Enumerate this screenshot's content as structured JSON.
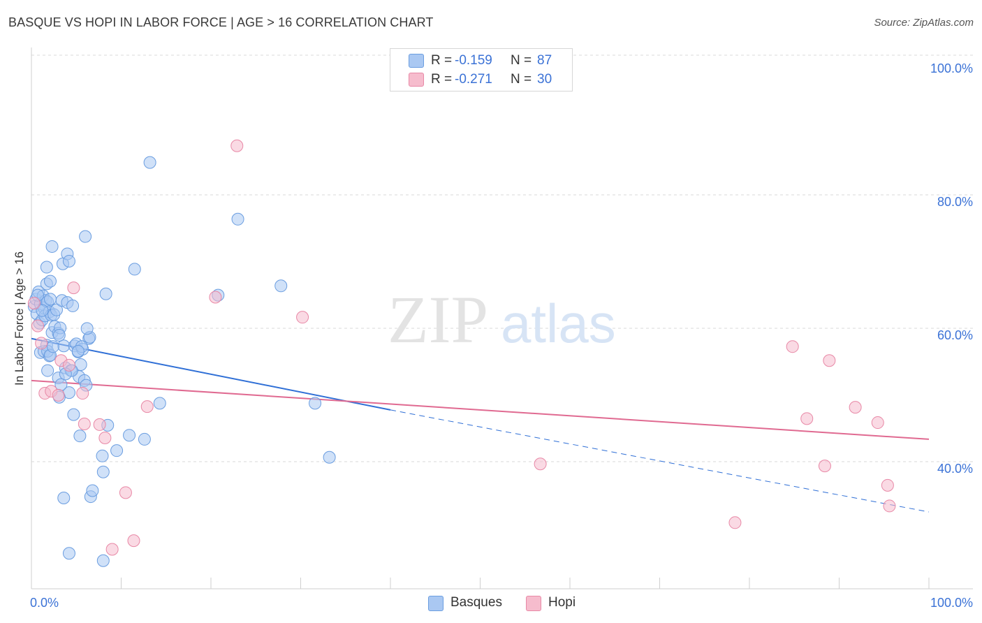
{
  "header": {
    "title": "BASQUE VS HOPI IN LABOR FORCE | AGE > 16 CORRELATION CHART",
    "source": "Source: ZipAtlas.com"
  },
  "legend": {
    "rows": [
      {
        "r_label": "R =",
        "r_value": "-0.159",
        "n_label": "N =",
        "n_value": "87"
      },
      {
        "r_label": "R =",
        "r_value": "-0.271",
        "n_label": "N =",
        "n_value": "30"
      }
    ],
    "bottom": [
      "Basques",
      "Hopi"
    ]
  },
  "watermark": {
    "zip": "ZIP",
    "atlas": "atlas"
  },
  "colors": {
    "basques_fill": "#aac8f2",
    "basques_stroke": "#6a9de0",
    "basques_line": "#2f6fd6",
    "hopi_fill": "#f6bccd",
    "hopi_stroke": "#e888a6",
    "hopi_line": "#e06a91",
    "tick_label": "#3b72d6",
    "grid": "#d9d9d9"
  },
  "chart_data": {
    "type": "scatter",
    "title": "BASQUE VS HOPI IN LABOR FORCE | AGE > 16 CORRELATION CHART",
    "xlabel": "",
    "ylabel": "In Labor Force | Age > 16",
    "xlim": [
      0,
      100
    ],
    "ylim": [
      20,
      100
    ],
    "x_tick_labels": [
      "0.0%",
      "100.0%"
    ],
    "y_ticks": [
      40,
      60,
      80,
      100
    ],
    "y_tick_labels": [
      "40.0%",
      "60.0%",
      "80.0%",
      "100.0%"
    ],
    "grid": true,
    "legend_position": "top-center",
    "series": [
      {
        "name": "Basques",
        "R": -0.159,
        "N": 87,
        "trend": {
          "x": [
            0,
            40
          ],
          "y": [
            59.4,
            48.7
          ],
          "dashed_extension": {
            "x": [
              40,
              100
            ],
            "y": [
              48.7,
              33.4
            ]
          }
        },
        "points": [
          [
            0.3,
            64.2
          ],
          [
            0.5,
            65.3
          ],
          [
            0.6,
            63.1
          ],
          [
            0.8,
            66.4
          ],
          [
            0.9,
            61.7
          ],
          [
            1.0,
            64.6
          ],
          [
            1.2,
            62.2
          ],
          [
            1.3,
            65.8
          ],
          [
            1.4,
            64.0
          ],
          [
            1.5,
            62.8
          ],
          [
            1.6,
            65.1
          ],
          [
            1.7,
            67.6
          ],
          [
            1.8,
            64.9
          ],
          [
            2.0,
            63.4
          ],
          [
            2.1,
            65.3
          ],
          [
            2.2,
            62.9
          ],
          [
            1.0,
            57.3
          ],
          [
            1.4,
            57.5
          ],
          [
            1.7,
            58.4
          ],
          [
            2.0,
            56.8
          ],
          [
            1.8,
            54.6
          ],
          [
            2.3,
            60.3
          ],
          [
            2.5,
            63.0
          ],
          [
            2.6,
            61.2
          ],
          [
            2.8,
            63.7
          ],
          [
            3.0,
            60.2
          ],
          [
            3.2,
            61.0
          ],
          [
            3.4,
            65.1
          ],
          [
            3.6,
            58.3
          ],
          [
            3.8,
            55.0
          ],
          [
            4.0,
            64.8
          ],
          [
            4.2,
            51.3
          ],
          [
            4.4,
            54.6
          ],
          [
            4.6,
            64.3
          ],
          [
            4.8,
            58.3
          ],
          [
            5.0,
            58.6
          ],
          [
            5.2,
            57.4
          ],
          [
            5.3,
            53.7
          ],
          [
            5.5,
            55.5
          ],
          [
            5.7,
            57.8
          ],
          [
            5.9,
            53.1
          ],
          [
            6.1,
            52.4
          ],
          [
            6.4,
            59.4
          ],
          [
            3.0,
            53.5
          ],
          [
            3.3,
            52.5
          ],
          [
            3.1,
            50.6
          ],
          [
            4.7,
            48.0
          ],
          [
            5.4,
            44.8
          ],
          [
            1.7,
            70.1
          ],
          [
            2.1,
            68.0
          ],
          [
            2.3,
            73.2
          ],
          [
            3.5,
            70.6
          ],
          [
            4.0,
            72.1
          ],
          [
            4.2,
            71.0
          ],
          [
            6.0,
            74.7
          ],
          [
            6.5,
            59.6
          ],
          [
            6.2,
            60.9
          ],
          [
            1.8,
            57.5
          ],
          [
            2.1,
            56.9
          ],
          [
            3.1,
            59.9
          ],
          [
            4.5,
            54.6
          ],
          [
            5.6,
            58.2
          ],
          [
            8.3,
            66.1
          ],
          [
            11.5,
            69.8
          ],
          [
            13.2,
            85.8
          ],
          [
            14.3,
            49.7
          ],
          [
            8.5,
            46.4
          ],
          [
            7.9,
            41.8
          ],
          [
            8.0,
            39.4
          ],
          [
            9.5,
            42.6
          ],
          [
            10.9,
            44.9
          ],
          [
            12.6,
            44.3
          ],
          [
            6.6,
            35.7
          ],
          [
            6.8,
            36.6
          ],
          [
            3.6,
            35.5
          ],
          [
            4.2,
            27.2
          ],
          [
            8.0,
            26.1
          ],
          [
            20.8,
            65.9
          ],
          [
            23.0,
            77.3
          ],
          [
            27.8,
            67.3
          ],
          [
            31.6,
            49.7
          ],
          [
            33.2,
            41.6
          ],
          [
            2.4,
            58.2
          ],
          [
            5.2,
            57.5
          ],
          [
            3.8,
            54.1
          ],
          [
            1.2,
            63.6
          ],
          [
            0.7,
            65.9
          ]
        ]
      },
      {
        "name": "Hopi",
        "R": -0.271,
        "N": 30,
        "trend": {
          "x": [
            0,
            100
          ],
          "y": [
            53.1,
            44.3
          ]
        },
        "points": [
          [
            0.3,
            64.7
          ],
          [
            0.7,
            61.3
          ],
          [
            1.1,
            58.7
          ],
          [
            1.5,
            51.2
          ],
          [
            2.2,
            51.5
          ],
          [
            3.0,
            50.9
          ],
          [
            3.3,
            56.1
          ],
          [
            4.2,
            55.4
          ],
          [
            4.7,
            67.0
          ],
          [
            5.7,
            51.2
          ],
          [
            5.9,
            46.6
          ],
          [
            7.6,
            46.5
          ],
          [
            8.2,
            44.5
          ],
          [
            10.5,
            36.3
          ],
          [
            9.0,
            27.8
          ],
          [
            11.4,
            29.1
          ],
          [
            12.9,
            49.2
          ],
          [
            20.5,
            65.6
          ],
          [
            22.9,
            88.3
          ],
          [
            30.2,
            62.6
          ],
          [
            78.4,
            31.8
          ],
          [
            84.8,
            58.2
          ],
          [
            86.4,
            47.4
          ],
          [
            88.4,
            40.3
          ],
          [
            88.9,
            56.1
          ],
          [
            91.8,
            49.1
          ],
          [
            94.3,
            46.8
          ],
          [
            95.4,
            37.4
          ],
          [
            95.6,
            34.3
          ],
          [
            56.7,
            40.6
          ]
        ]
      }
    ]
  }
}
